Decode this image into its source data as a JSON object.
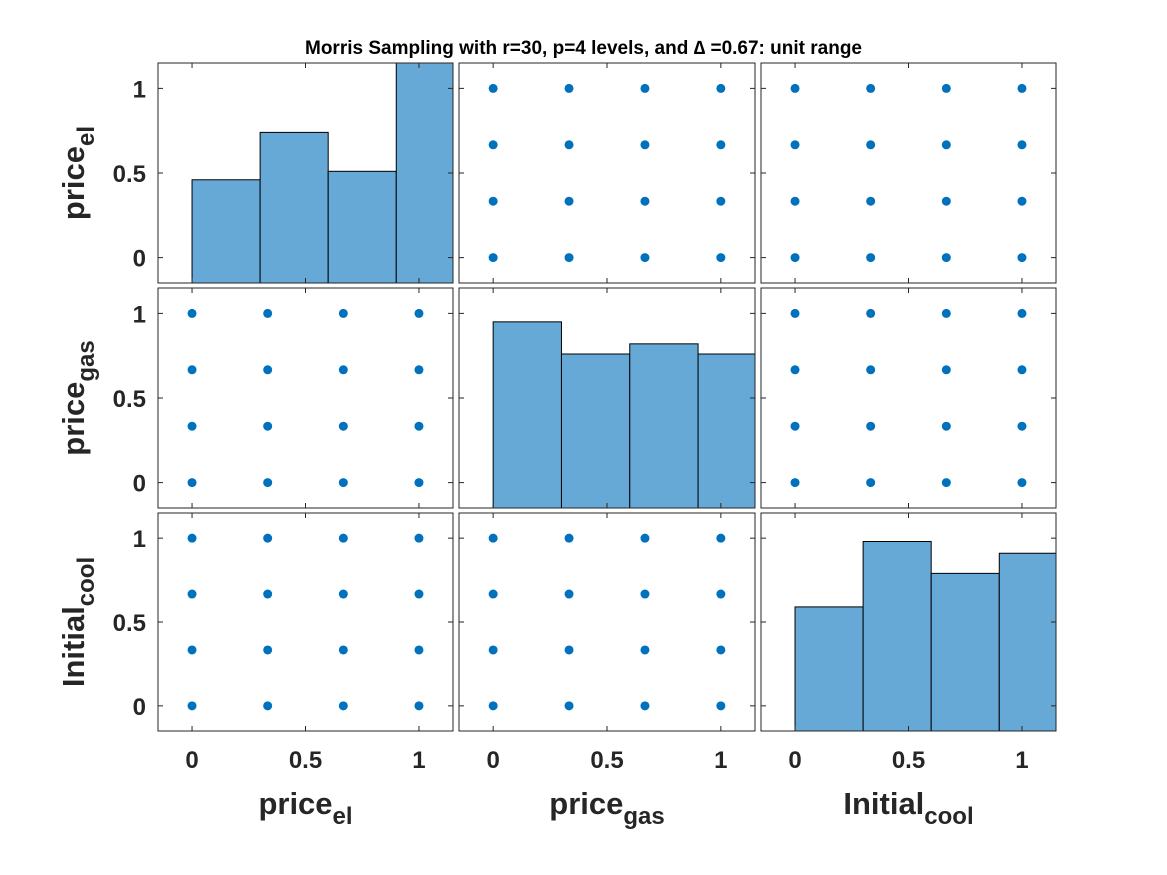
{
  "chart_data": {
    "type": "scatter-matrix",
    "title": "Morris Sampling with r=30, p=4 levels, and ∆ =0.67: unit range",
    "variables": [
      {
        "base": "price",
        "sub": "el"
      },
      {
        "base": "price",
        "sub": "gas"
      },
      {
        "base": "Initial",
        "sub": "cool"
      }
    ],
    "levels": [
      0,
      0.3333,
      0.6667,
      1
    ],
    "xlim": [
      -0.15,
      1.15
    ],
    "ylim": [
      -0.15,
      1.15
    ],
    "ticks": [
      0,
      0.5,
      1
    ],
    "tick_labels": [
      "0",
      "0.5",
      "1"
    ],
    "histogram_bin_edges": [
      -0.0,
      0.3,
      0.6,
      0.9,
      1.2
    ],
    "histograms": [
      {
        "variable": "price_el",
        "heights": [
          0.46,
          0.74,
          0.51,
          1.15
        ]
      },
      {
        "variable": "price_gas",
        "heights": [
          0.95,
          0.76,
          0.82,
          0.76
        ]
      },
      {
        "variable": "Initial_cool",
        "heights": [
          0.59,
          0.98,
          0.79,
          0.91
        ]
      }
    ],
    "colors": {
      "marker": "#0072BD",
      "bar_fill": "#66A9D7",
      "bar_edge": "#000000",
      "axes": "#262626"
    },
    "grid": false,
    "legend": "none"
  }
}
